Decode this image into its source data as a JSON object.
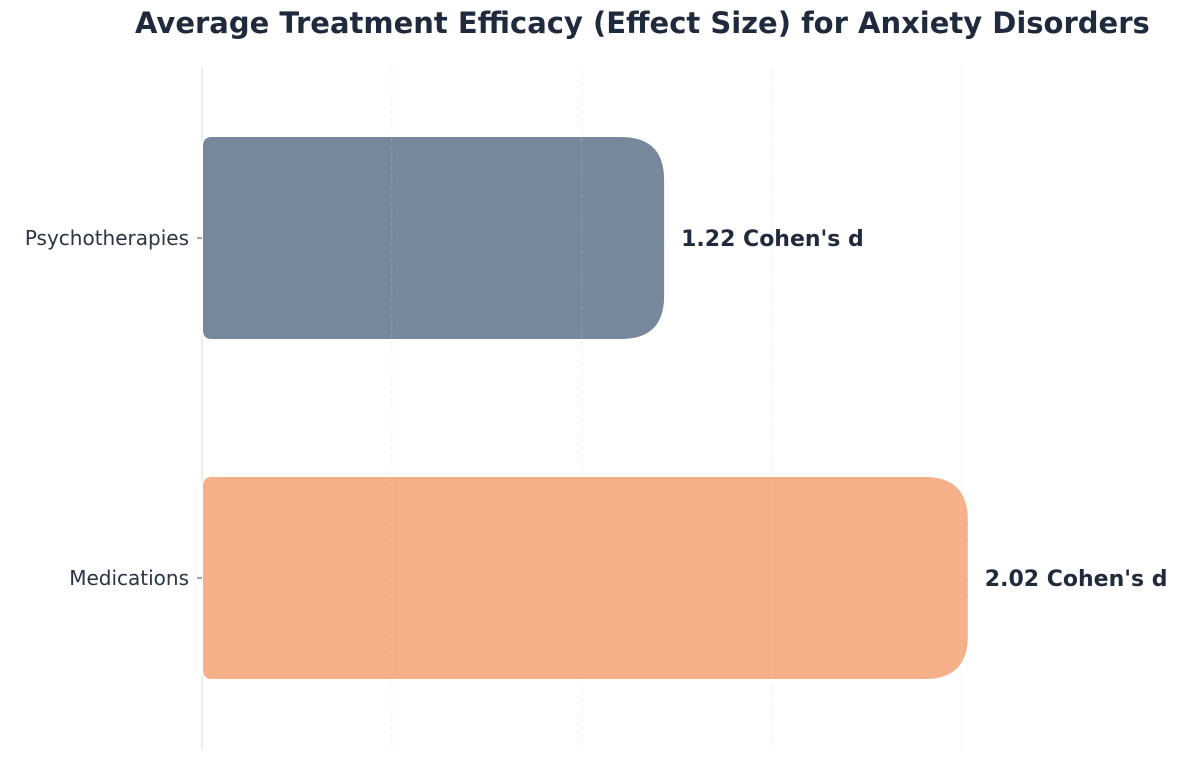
{
  "chart_data": {
    "type": "bar",
    "orientation": "horizontal",
    "title": "Average Treatment Efficacy (Effect Size) for Anxiety Disorders",
    "categories": [
      "Psychotherapies",
      "Medications"
    ],
    "values": [
      1.22,
      2.02
    ],
    "value_labels": [
      "1.22 Cohen's d",
      "2.02 Cohen's d"
    ],
    "colors": [
      "#77879c",
      "#f5af89"
    ],
    "xlim": [
      0,
      2.5
    ],
    "grid": true,
    "xlabel": "",
    "ylabel": ""
  }
}
